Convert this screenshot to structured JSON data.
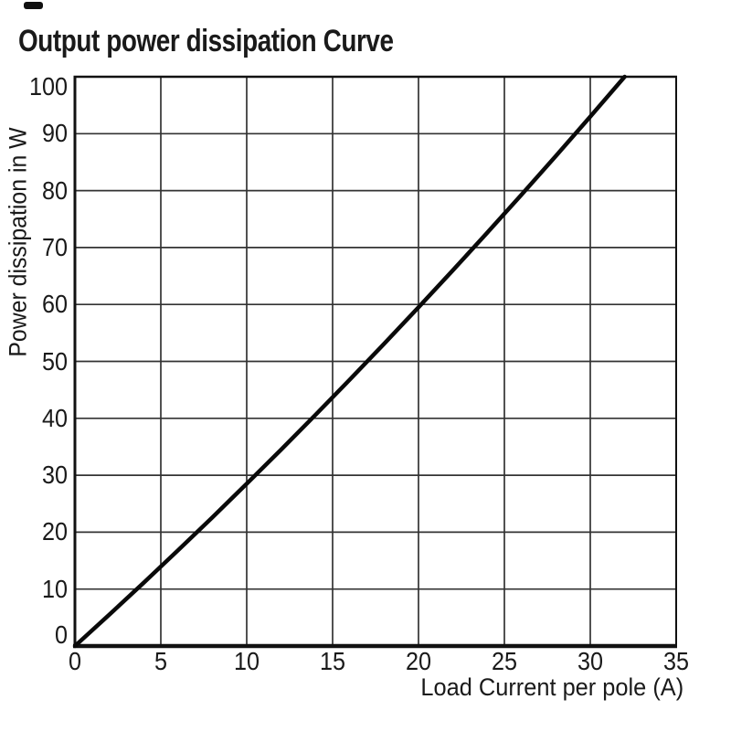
{
  "chart_data": {
    "type": "line",
    "title": "Output power dissipation Curve",
    "xlabel": "Load Current per pole (A)",
    "ylabel": "Power dissipation in W",
    "xlim": [
      0,
      35
    ],
    "ylim": [
      0,
      100
    ],
    "x_ticks": [
      0,
      5,
      10,
      15,
      20,
      25,
      30,
      35
    ],
    "y_ticks": [
      0,
      10,
      20,
      30,
      40,
      50,
      60,
      70,
      80,
      90,
      100
    ],
    "grid": true,
    "legend": "none",
    "series": [
      {
        "name": "power-dissipation-curve",
        "x": [
          0,
          2,
          4,
          6,
          8,
          10,
          12,
          14,
          16,
          18,
          20,
          22,
          24,
          26,
          28,
          30,
          32
        ],
        "y": [
          0,
          5.5,
          11.1,
          16.8,
          22.6,
          28.5,
          34.5,
          40.6,
          46.8,
          53.1,
          59.5,
          66.0,
          72.6,
          79.3,
          86.1,
          93.0,
          100
        ]
      }
    ],
    "colors": {
      "line": "#0a0a0a",
      "grid": "#333333",
      "axis": "#111111",
      "text": "#1a1a1a",
      "background": "#ffffff"
    }
  }
}
